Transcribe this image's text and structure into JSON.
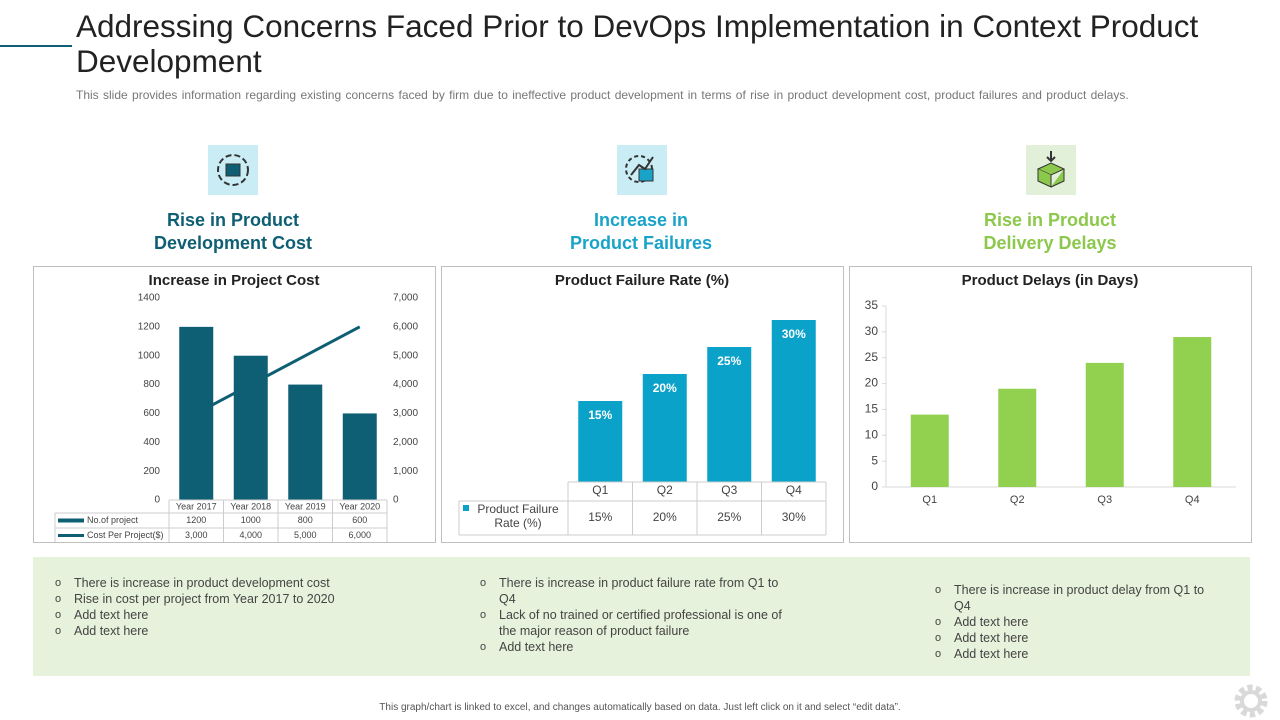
{
  "header": {
    "title": "Addressing Concerns Faced Prior to DevOps Implementation in Context Product Development",
    "subtitle": "This slide provides  information regarding  existing concerns  faced  by firm  due to ineffective  product development  in terms of rise in product development  cost, product failures  and product delays."
  },
  "sections": [
    {
      "heading": "Rise in Product Development Cost",
      "color": "#0e5f73"
    },
    {
      "heading": "Increase in Product Failures",
      "color": "#1aa3c8"
    },
    {
      "heading": "Rise in Product Delivery Delays",
      "color": "#8cc84b"
    }
  ],
  "chart_data": [
    {
      "type": "combo",
      "title": "Increase in Project Cost",
      "categories": [
        "Year 2017",
        "Year 2018",
        "Year 2019",
        "Year 2020"
      ],
      "series": [
        {
          "name": "No.of project",
          "type": "bar",
          "color": "#0e5f73",
          "values": [
            1200,
            1000,
            800,
            600
          ]
        },
        {
          "name": "Cost Per Project($)",
          "type": "line",
          "axis": "y2",
          "color": "#0e5f73",
          "values": [
            3000,
            4000,
            5000,
            6000
          ],
          "value_labels": [
            "3,000",
            "4,000",
            "5,000",
            "6,000"
          ]
        }
      ],
      "ylim": [
        0,
        1400
      ],
      "yticks": [
        0,
        200,
        400,
        600,
        800,
        1000,
        1200,
        1400
      ],
      "y2lim": [
        0,
        7000
      ],
      "y2ticks": [
        0,
        {
          "value": 1000,
          "label": "1,000"
        },
        {
          "value": 2000,
          "label": "2,000"
        },
        {
          "value": 3000,
          "label": "3,000"
        },
        {
          "value": 4000,
          "label": "4,000"
        },
        {
          "value": 5000,
          "label": "5,000"
        },
        {
          "value": 6000,
          "label": "6,000"
        },
        {
          "value": 7000,
          "label": "7,000"
        }
      ],
      "data_table": true
    },
    {
      "type": "bar",
      "title": "Product Failure Rate (%)",
      "categories": [
        "Q1",
        "Q2",
        "Q3",
        "Q4"
      ],
      "series": [
        {
          "name": "Product Failure Rate (%)",
          "color": "#0aa2c9",
          "values": [
            15,
            20,
            25,
            30
          ],
          "value_labels": [
            "15%",
            "20%",
            "25%",
            "30%"
          ]
        }
      ],
      "data_table": true
    },
    {
      "type": "bar",
      "title": "Product Delays (in Days)",
      "categories": [
        "Q1",
        "Q2",
        "Q3",
        "Q4"
      ],
      "series": [
        {
          "color": "#92d050",
          "values": [
            14,
            19,
            24,
            29
          ]
        }
      ],
      "ylim": [
        0,
        35
      ],
      "yticks": [
        0,
        5,
        10,
        15,
        20,
        25,
        30,
        35
      ]
    }
  ],
  "notes": [
    [
      "There is increase in product development  cost",
      "Rise in cost per project from Year 2017 to 2020",
      "Add text here",
      "Add text here"
    ],
    [
      "There is increase in product failure rate from Q1 to Q4",
      "Lack of no trained or certified professional  is one of the major reason of product failure",
      "Add text here"
    ],
    [
      "There is increase in product delay from Q1 to Q4",
      "Add text here",
      "Add text here",
      "Add text here"
    ]
  ],
  "footer": "This graph/chart is linked to excel, and changes automatically based on data. Just left click on it and select “edit data”."
}
